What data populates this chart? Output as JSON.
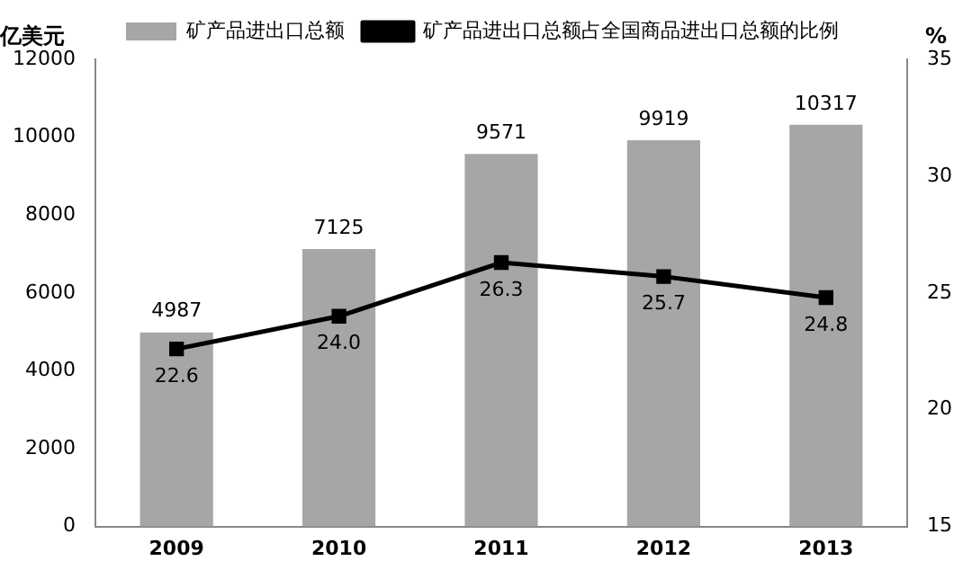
{
  "chart_data": {
    "type": "bar",
    "categories": [
      "2009",
      "2010",
      "2011",
      "2012",
      "2013"
    ],
    "ylabel": "亿美元",
    "y2label": "%",
    "series": [
      {
        "name": "矿产品进出口总额",
        "color": "#a6a6a6",
        "values": [
          4987,
          7125,
          9571,
          9919,
          10317
        ]
      },
      {
        "name": "矿产品进出口总额占全国商品进出口总额的比例",
        "type": "line",
        "axis": "y2",
        "color": "#000000",
        "values": [
          22.6,
          24.0,
          26.3,
          25.7,
          24.8
        ],
        "value_labels": [
          "22.6",
          "24.0",
          "26.3",
          "25.7",
          "24.8"
        ]
      }
    ],
    "ylim": [
      0,
      12000
    ],
    "yticks": [
      0,
      2000,
      4000,
      6000,
      8000,
      10000,
      12000
    ],
    "y2lim": [
      15,
      35
    ],
    "y2ticks": [
      15,
      20,
      25,
      30,
      35
    ],
    "legend": "top",
    "marker": "square",
    "line_style": "solid",
    "data_labels": true
  }
}
